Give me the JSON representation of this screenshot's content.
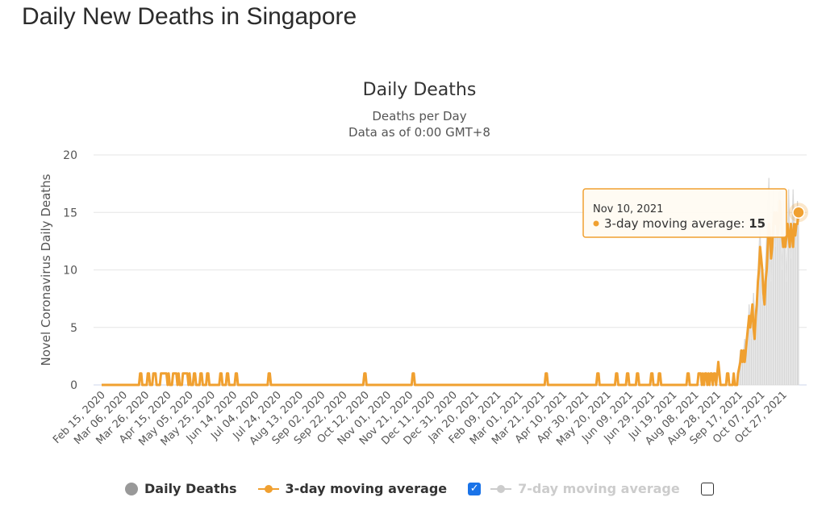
{
  "page": {
    "title": "Daily New Deaths in Singapore"
  },
  "colors": {
    "daily": "#999999",
    "ma3": "#f0a030",
    "ma7_hidden": "#cccccc",
    "grid": "#e6e6e6",
    "checkbox": "#1a73e8"
  },
  "legend": {
    "daily_label": "Daily Deaths",
    "ma3_label": "3-day moving average",
    "ma7_label": "7-day moving average",
    "ma3_checked": true,
    "ma7_checked": false
  },
  "tooltip": {
    "date": "Nov 10, 2021",
    "series": "3-day moving average",
    "value": "15"
  },
  "chart_data": {
    "type": "line",
    "title": "Daily Deaths",
    "subtitle": [
      "Deaths per Day",
      "Data as of 0:00 GMT+8"
    ],
    "ylabel": "Novel Coronavirus Daily Deaths",
    "ylim": [
      0,
      20
    ],
    "yticks": [
      0,
      5,
      10,
      15,
      20
    ],
    "x_range": [
      "2020-02-15",
      "2021-11-10"
    ],
    "xtick_labels": [
      "Feb 15, 2020",
      "Mar 06, 2020",
      "Mar 26, 2020",
      "Apr 15, 2020",
      "May 05, 2020",
      "May 25, 2020",
      "Jun 14, 2020",
      "Jul 04, 2020",
      "Jul 24, 2020",
      "Aug 13, 2020",
      "Sep 02, 2020",
      "Sep 22, 2020",
      "Oct 12, 2020",
      "Nov 01, 2020",
      "Nov 21, 2020",
      "Dec 11, 2020",
      "Dec 31, 2020",
      "Jan 20, 2021",
      "Feb 09, 2021",
      "Mar 01, 2021",
      "Mar 21, 2021",
      "Apr 10, 2021",
      "Apr 30, 2021",
      "May 20, 2021",
      "Jun 09, 2021",
      "Jun 29, 2021",
      "Jul 19, 2021",
      "Aug 08, 2021",
      "Aug 28, 2021",
      "Sep 17, 2021",
      "Oct 07, 2021",
      "Oct 27, 2021"
    ],
    "grid": true,
    "legend_position": "bottom",
    "series": [
      {
        "name": "3-day moving average",
        "points": [
          [
            "2020-02-15",
            0
          ],
          [
            "2020-03-20",
            0
          ],
          [
            "2020-03-21",
            1
          ],
          [
            "2020-03-22",
            1
          ],
          [
            "2020-03-23",
            0
          ],
          [
            "2020-03-27",
            0
          ],
          [
            "2020-03-28",
            1
          ],
          [
            "2020-03-29",
            1
          ],
          [
            "2020-03-30",
            0
          ],
          [
            "2020-04-01",
            0
          ],
          [
            "2020-04-02",
            1
          ],
          [
            "2020-04-04",
            1
          ],
          [
            "2020-04-05",
            0
          ],
          [
            "2020-04-08",
            0
          ],
          [
            "2020-04-09",
            1
          ],
          [
            "2020-04-14",
            1
          ],
          [
            "2020-04-15",
            0
          ],
          [
            "2020-04-16",
            1
          ],
          [
            "2020-04-17",
            0
          ],
          [
            "2020-04-19",
            0
          ],
          [
            "2020-04-20",
            1
          ],
          [
            "2020-04-23",
            1
          ],
          [
            "2020-04-24",
            0
          ],
          [
            "2020-04-25",
            1
          ],
          [
            "2020-04-26",
            0
          ],
          [
            "2020-04-28",
            0
          ],
          [
            "2020-04-29",
            1
          ],
          [
            "2020-05-03",
            1
          ],
          [
            "2020-05-04",
            0
          ],
          [
            "2020-05-05",
            1
          ],
          [
            "2020-05-06",
            0
          ],
          [
            "2020-05-08",
            0
          ],
          [
            "2020-05-09",
            1
          ],
          [
            "2020-05-10",
            1
          ],
          [
            "2020-05-11",
            0
          ],
          [
            "2020-05-14",
            0
          ],
          [
            "2020-05-15",
            1
          ],
          [
            "2020-05-16",
            1
          ],
          [
            "2020-05-17",
            0
          ],
          [
            "2020-05-20",
            0
          ],
          [
            "2020-05-21",
            1
          ],
          [
            "2020-05-22",
            1
          ],
          [
            "2020-05-23",
            0
          ],
          [
            "2020-06-01",
            0
          ],
          [
            "2020-06-02",
            1
          ],
          [
            "2020-06-03",
            1
          ],
          [
            "2020-06-04",
            0
          ],
          [
            "2020-06-07",
            0
          ],
          [
            "2020-06-08",
            1
          ],
          [
            "2020-06-09",
            1
          ],
          [
            "2020-06-10",
            0
          ],
          [
            "2020-06-15",
            0
          ],
          [
            "2020-06-16",
            1
          ],
          [
            "2020-06-17",
            1
          ],
          [
            "2020-06-18",
            0
          ],
          [
            "2020-07-15",
            0
          ],
          [
            "2020-07-16",
            1
          ],
          [
            "2020-07-17",
            1
          ],
          [
            "2020-07-18",
            0
          ],
          [
            "2020-10-10",
            0
          ],
          [
            "2020-10-11",
            1
          ],
          [
            "2020-10-12",
            1
          ],
          [
            "2020-10-13",
            0
          ],
          [
            "2020-11-23",
            0
          ],
          [
            "2020-11-24",
            1
          ],
          [
            "2020-11-25",
            1
          ],
          [
            "2020-11-26",
            0
          ],
          [
            "2021-03-24",
            0
          ],
          [
            "2021-03-25",
            1
          ],
          [
            "2021-03-26",
            1
          ],
          [
            "2021-03-27",
            0
          ],
          [
            "2021-05-10",
            0
          ],
          [
            "2021-05-11",
            1
          ],
          [
            "2021-05-12",
            1
          ],
          [
            "2021-05-13",
            0
          ],
          [
            "2021-05-27",
            0
          ],
          [
            "2021-05-28",
            1
          ],
          [
            "2021-05-29",
            1
          ],
          [
            "2021-05-30",
            0
          ],
          [
            "2021-06-06",
            0
          ],
          [
            "2021-06-07",
            1
          ],
          [
            "2021-06-08",
            1
          ],
          [
            "2021-06-09",
            0
          ],
          [
            "2021-06-15",
            0
          ],
          [
            "2021-06-16",
            1
          ],
          [
            "2021-06-17",
            1
          ],
          [
            "2021-06-18",
            0
          ],
          [
            "2021-06-28",
            0
          ],
          [
            "2021-06-29",
            1
          ],
          [
            "2021-06-30",
            1
          ],
          [
            "2021-07-01",
            0
          ],
          [
            "2021-07-05",
            0
          ],
          [
            "2021-07-06",
            1
          ],
          [
            "2021-07-07",
            1
          ],
          [
            "2021-07-08",
            0
          ],
          [
            "2021-07-31",
            0
          ],
          [
            "2021-08-01",
            1
          ],
          [
            "2021-08-02",
            1
          ],
          [
            "2021-08-03",
            0
          ],
          [
            "2021-08-10",
            0
          ],
          [
            "2021-08-11",
            1
          ],
          [
            "2021-08-13",
            1
          ],
          [
            "2021-08-14",
            0
          ],
          [
            "2021-08-15",
            1
          ],
          [
            "2021-08-16",
            0
          ],
          [
            "2021-08-17",
            1
          ],
          [
            "2021-08-18",
            1
          ],
          [
            "2021-08-19",
            0
          ],
          [
            "2021-08-20",
            1
          ],
          [
            "2021-08-21",
            0
          ],
          [
            "2021-08-22",
            1
          ],
          [
            "2021-08-23",
            1
          ],
          [
            "2021-08-24",
            0
          ],
          [
            "2021-08-25",
            1
          ],
          [
            "2021-08-26",
            1
          ],
          [
            "2021-08-27",
            0
          ],
          [
            "2021-08-28",
            1
          ],
          [
            "2021-08-29",
            2
          ],
          [
            "2021-08-30",
            1
          ],
          [
            "2021-08-31",
            0
          ],
          [
            "2021-09-05",
            0
          ],
          [
            "2021-09-06",
            1
          ],
          [
            "2021-09-07",
            1
          ],
          [
            "2021-09-08",
            0
          ],
          [
            "2021-09-11",
            0
          ],
          [
            "2021-09-12",
            1
          ],
          [
            "2021-09-13",
            0
          ],
          [
            "2021-09-15",
            0
          ],
          [
            "2021-09-16",
            1
          ],
          [
            "2021-09-18",
            2
          ],
          [
            "2021-09-19",
            3
          ],
          [
            "2021-09-20",
            2
          ],
          [
            "2021-09-21",
            3
          ],
          [
            "2021-09-22",
            2
          ],
          [
            "2021-09-23",
            3
          ],
          [
            "2021-09-24",
            4
          ],
          [
            "2021-09-25",
            5
          ],
          [
            "2021-09-26",
            6
          ],
          [
            "2021-09-27",
            5
          ],
          [
            "2021-09-28",
            6
          ],
          [
            "2021-09-29",
            7
          ],
          [
            "2021-09-30",
            5
          ],
          [
            "2021-10-01",
            4
          ],
          [
            "2021-10-02",
            6
          ],
          [
            "2021-10-03",
            7
          ],
          [
            "2021-10-04",
            9
          ],
          [
            "2021-10-05",
            10
          ],
          [
            "2021-10-06",
            12
          ],
          [
            "2021-10-07",
            11
          ],
          [
            "2021-10-08",
            10
          ],
          [
            "2021-10-09",
            8
          ],
          [
            "2021-10-10",
            7
          ],
          [
            "2021-10-11",
            9
          ],
          [
            "2021-10-12",
            10
          ],
          [
            "2021-10-13",
            12
          ],
          [
            "2021-10-14",
            14
          ],
          [
            "2021-10-15",
            13
          ],
          [
            "2021-10-16",
            11
          ],
          [
            "2021-10-17",
            12
          ],
          [
            "2021-10-18",
            14
          ],
          [
            "2021-10-19",
            15
          ],
          [
            "2021-10-20",
            14
          ],
          [
            "2021-10-21",
            15
          ],
          [
            "2021-10-22",
            13
          ],
          [
            "2021-10-23",
            14
          ],
          [
            "2021-10-24",
            16
          ],
          [
            "2021-10-25",
            15
          ],
          [
            "2021-10-26",
            13
          ],
          [
            "2021-10-27",
            12
          ],
          [
            "2021-10-28",
            13
          ],
          [
            "2021-10-29",
            12
          ],
          [
            "2021-10-30",
            13
          ],
          [
            "2021-10-31",
            14
          ],
          [
            "2021-11-01",
            13
          ],
          [
            "2021-11-02",
            12
          ],
          [
            "2021-11-03",
            14
          ],
          [
            "2021-11-04",
            13
          ],
          [
            "2021-11-05",
            12
          ],
          [
            "2021-11-06",
            14
          ],
          [
            "2021-11-07",
            13
          ],
          [
            "2021-11-08",
            14
          ],
          [
            "2021-11-09",
            14
          ],
          [
            "2021-11-10",
            15
          ]
        ]
      },
      {
        "name": "Daily Deaths",
        "points": [
          [
            "2021-09-16",
            1
          ],
          [
            "2021-09-18",
            3
          ],
          [
            "2021-09-20",
            2
          ],
          [
            "2021-09-22",
            4
          ],
          [
            "2021-09-24",
            3
          ],
          [
            "2021-09-26",
            7
          ],
          [
            "2021-09-28",
            4
          ],
          [
            "2021-09-30",
            8
          ],
          [
            "2021-10-02",
            5
          ],
          [
            "2021-10-04",
            10
          ],
          [
            "2021-10-06",
            14
          ],
          [
            "2021-10-08",
            7
          ],
          [
            "2021-10-10",
            9
          ],
          [
            "2021-10-12",
            13
          ],
          [
            "2021-10-14",
            18
          ],
          [
            "2021-10-16",
            9
          ],
          [
            "2021-10-18",
            17
          ],
          [
            "2021-10-20",
            12
          ],
          [
            "2021-10-22",
            16
          ],
          [
            "2021-10-24",
            17
          ],
          [
            "2021-10-26",
            10
          ],
          [
            "2021-10-28",
            16
          ],
          [
            "2021-10-30",
            9
          ],
          [
            "2021-11-01",
            17
          ],
          [
            "2021-11-03",
            11
          ],
          [
            "2021-11-05",
            17
          ],
          [
            "2021-11-07",
            12
          ],
          [
            "2021-11-09",
            16
          ],
          [
            "2021-11-10",
            14
          ]
        ]
      }
    ]
  }
}
